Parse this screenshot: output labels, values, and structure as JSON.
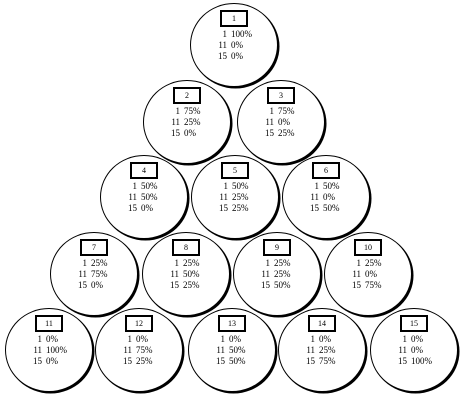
{
  "nodes": [
    {
      "id": "1",
      "rows": [
        {
          "label": "1",
          "pct": "100%"
        },
        {
          "label": "11",
          "pct": "0%"
        },
        {
          "label": "15",
          "pct": "0%"
        }
      ]
    },
    {
      "id": "2",
      "rows": [
        {
          "label": "1",
          "pct": "75%"
        },
        {
          "label": "11",
          "pct": "25%"
        },
        {
          "label": "15",
          "pct": "0%"
        }
      ]
    },
    {
      "id": "3",
      "rows": [
        {
          "label": "1",
          "pct": "75%"
        },
        {
          "label": "11",
          "pct": "0%"
        },
        {
          "label": "15",
          "pct": "25%"
        }
      ]
    },
    {
      "id": "4",
      "rows": [
        {
          "label": "1",
          "pct": "50%"
        },
        {
          "label": "11",
          "pct": "50%"
        },
        {
          "label": "15",
          "pct": "0%"
        }
      ]
    },
    {
      "id": "5",
      "rows": [
        {
          "label": "1",
          "pct": "50%"
        },
        {
          "label": "11",
          "pct": "25%"
        },
        {
          "label": "15",
          "pct": "25%"
        }
      ]
    },
    {
      "id": "6",
      "rows": [
        {
          "label": "1",
          "pct": "50%"
        },
        {
          "label": "11",
          "pct": "0%"
        },
        {
          "label": "15",
          "pct": "50%"
        }
      ]
    },
    {
      "id": "7",
      "rows": [
        {
          "label": "1",
          "pct": "25%"
        },
        {
          "label": "11",
          "pct": "75%"
        },
        {
          "label": "15",
          "pct": "0%"
        }
      ]
    },
    {
      "id": "8",
      "rows": [
        {
          "label": "1",
          "pct": "25%"
        },
        {
          "label": "11",
          "pct": "50%"
        },
        {
          "label": "15",
          "pct": "25%"
        }
      ]
    },
    {
      "id": "9",
      "rows": [
        {
          "label": "1",
          "pct": "25%"
        },
        {
          "label": "11",
          "pct": "25%"
        },
        {
          "label": "15",
          "pct": "50%"
        }
      ]
    },
    {
      "id": "10",
      "rows": [
        {
          "label": "1",
          "pct": "25%"
        },
        {
          "label": "11",
          "pct": "0%"
        },
        {
          "label": "15",
          "pct": "75%"
        }
      ]
    },
    {
      "id": "11",
      "rows": [
        {
          "label": "1",
          "pct": "0%"
        },
        {
          "label": "11",
          "pct": "100%"
        },
        {
          "label": "15",
          "pct": "0%"
        }
      ]
    },
    {
      "id": "12",
      "rows": [
        {
          "label": "1",
          "pct": "0%"
        },
        {
          "label": "11",
          "pct": "75%"
        },
        {
          "label": "15",
          "pct": "25%"
        }
      ]
    },
    {
      "id": "13",
      "rows": [
        {
          "label": "1",
          "pct": "0%"
        },
        {
          "label": "11",
          "pct": "50%"
        },
        {
          "label": "15",
          "pct": "50%"
        }
      ]
    },
    {
      "id": "14",
      "rows": [
        {
          "label": "1",
          "pct": "0%"
        },
        {
          "label": "11",
          "pct": "25%"
        },
        {
          "label": "15",
          "pct": "75%"
        }
      ]
    },
    {
      "id": "15",
      "rows": [
        {
          "label": "1",
          "pct": "0%"
        },
        {
          "label": "11",
          "pct": "0%"
        },
        {
          "label": "15",
          "pct": "100%"
        }
      ]
    }
  ]
}
